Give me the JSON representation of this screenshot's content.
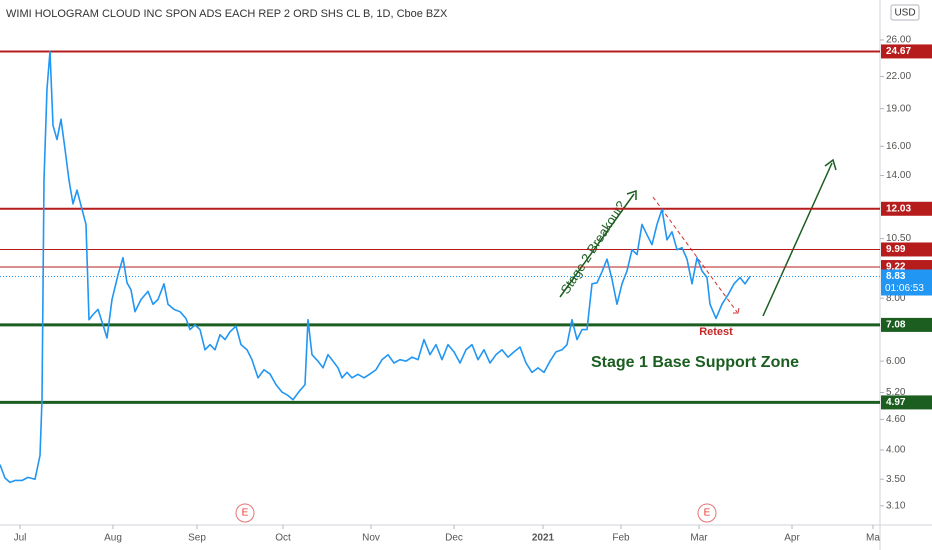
{
  "chart_data": {
    "type": "line",
    "title": "WIMI HOLOGRAM CLOUD INC SPON ADS EACH REP 2 ORD SHS CL B, 1D, Cboe BZX",
    "currency": "USD",
    "log_scale": true,
    "grid": false,
    "x": [
      0,
      1.25,
      2.5,
      3.75,
      5.5,
      7,
      8.75,
      10,
      10.5,
      11,
      11.75,
      12.5,
      13.25,
      14.25,
      15.25,
      16.25,
      17.25,
      18.25,
      19.25,
      20.5,
      21.5,
      22.25,
      23.25,
      24.5,
      25.75,
      26.75,
      28,
      29.5,
      30.75,
      31.75,
      32.75,
      33.75,
      35.25,
      37,
      38.25,
      39.5,
      41,
      42,
      43.5,
      45,
      46.5,
      47.5,
      48.75,
      50,
      51.25,
      52.5,
      53.75,
      55,
      56.25,
      57.5,
      59,
      60.25,
      61.75,
      63,
      64.5,
      66,
      67.5,
      69,
      70.5,
      72,
      73.25,
      74.5,
      76.25,
      77,
      78,
      79.5,
      80.75,
      82,
      83.25,
      84.5,
      85.5,
      86.75,
      88,
      89.5,
      91,
      92.5,
      94,
      95.5,
      97,
      98.5,
      100,
      101.5,
      103,
      104.5,
      106,
      107.5,
      109,
      110.5,
      112,
      113.5,
      115,
      116.5,
      118,
      119.5,
      121,
      122.5,
      124,
      125.5,
      127,
      128.5,
      130,
      131.5,
      133,
      134.5,
      136,
      137.5,
      139,
      140.5,
      141.75,
      143,
      144.25,
      145.5,
      146.75,
      148,
      149.25,
      150.5,
      151.75,
      153,
      154.25,
      155.5,
      156.75,
      158,
      159.25,
      160.5,
      161.75,
      163,
      164.25,
      165.5,
      166.75,
      168,
      169.25,
      170.5,
      171.75,
      173,
      174.25,
      175.5,
      176.75,
      177.5,
      179,
      180.5,
      182,
      183.5,
      185,
      186.25,
      187.5
    ],
    "series": [
      {
        "color": "#2196f3",
        "values": [
          3.74,
          3.52,
          3.45,
          3.48,
          3.48,
          3.53,
          3.5,
          3.9,
          5.03,
          13.72,
          20.8,
          24.67,
          17.6,
          16.5,
          18.1,
          15.8,
          13.7,
          12.3,
          13.1,
          12.0,
          11.2,
          7.25,
          7.42,
          7.6,
          7.08,
          6.67,
          7.95,
          8.9,
          9.62,
          8.58,
          8.31,
          7.52,
          7.95,
          8.25,
          7.78,
          7.95,
          8.54,
          7.78,
          7.6,
          7.52,
          7.29,
          6.93,
          7.08,
          6.93,
          6.32,
          6.47,
          6.32,
          6.77,
          6.62,
          6.86,
          7.04,
          6.47,
          6.32,
          6.04,
          5.56,
          5.77,
          5.66,
          5.39,
          5.21,
          5.13,
          5.03,
          5.19,
          5.39,
          7.25,
          6.18,
          6.0,
          5.82,
          6.18,
          6.0,
          5.82,
          5.56,
          5.7,
          5.56,
          5.65,
          5.56,
          5.66,
          5.77,
          6.04,
          6.18,
          5.95,
          6.04,
          6.0,
          6.11,
          6.04,
          6.62,
          6.18,
          6.47,
          6.04,
          6.47,
          6.26,
          5.95,
          6.32,
          6.47,
          6.04,
          6.32,
          5.95,
          6.18,
          6.32,
          6.11,
          6.26,
          6.4,
          5.95,
          5.7,
          5.82,
          5.7,
          6.0,
          6.26,
          6.32,
          6.47,
          7.25,
          6.62,
          6.93,
          6.93,
          8.54,
          8.58,
          9.02,
          9.56,
          8.72,
          7.78,
          8.54,
          9.06,
          9.98,
          9.76,
          11.2,
          10.68,
          10.21,
          11.2,
          12.0,
          10.44,
          10.83,
          9.98,
          10.07,
          9.56,
          8.54,
          9.62,
          9.06,
          8.79,
          7.78,
          7.29,
          7.78,
          8.12,
          8.54,
          8.79,
          8.54,
          8.83
        ]
      }
    ],
    "xlim": [
      0,
      220
    ],
    "xticks": [
      {
        "value": 5,
        "label": "Jul"
      },
      {
        "value": 28.25,
        "label": "Aug"
      },
      {
        "value": 49.25,
        "label": "Sep"
      },
      {
        "value": 70.75,
        "label": "Oct"
      },
      {
        "value": 92.75,
        "label": "Nov"
      },
      {
        "value": 113.5,
        "label": "Dec"
      },
      {
        "value": 135.75,
        "label": "2021"
      },
      {
        "value": 155.25,
        "label": "Feb"
      },
      {
        "value": 174.75,
        "label": "Mar"
      },
      {
        "value": 198,
        "label": "Apr"
      },
      {
        "value": 218.25,
        "label": "Ma"
      }
    ],
    "ylim": [
      2.84,
      31.2
    ],
    "yticks": [
      {
        "value": 26,
        "label": "26.00"
      },
      {
        "value": 22,
        "label": "22.00"
      },
      {
        "value": 19,
        "label": "19.00"
      },
      {
        "value": 16,
        "label": "16.00"
      },
      {
        "value": 14,
        "label": "14.00"
      },
      {
        "value": 10.5,
        "label": "10.50"
      },
      {
        "value": 8,
        "label": "8.00"
      },
      {
        "value": 6,
        "label": "6.00"
      },
      {
        "value": 5.2,
        "label": "5.20"
      },
      {
        "value": 4.6,
        "label": "4.60"
      },
      {
        "value": 4,
        "label": "4.00"
      },
      {
        "value": 3.5,
        "label": "3.50"
      },
      {
        "value": 3.1,
        "label": "3.10"
      }
    ],
    "levels": [
      {
        "value": 24.67,
        "color": "#b71c1c",
        "width": 2
      },
      {
        "value": 12.03,
        "color": "#b71c1c",
        "width": 2
      },
      {
        "value": 9.99,
        "color": "#b71c1c",
        "width": 1
      },
      {
        "value": 9.22,
        "color": "#b71c1c",
        "width": 1
      },
      {
        "value": 7.08,
        "color": "#1b5e20",
        "width": 3
      },
      {
        "value": 4.97,
        "color": "#1b5e20",
        "width": 3
      }
    ],
    "last_price": 8.83,
    "countdown": "01:06:53",
    "annotations": {
      "breakout": "Stage 2 Breakout?",
      "support": "Stage 1 Base Support Zone",
      "retest": "Retest",
      "earnings": [
        "E",
        "E"
      ]
    }
  }
}
